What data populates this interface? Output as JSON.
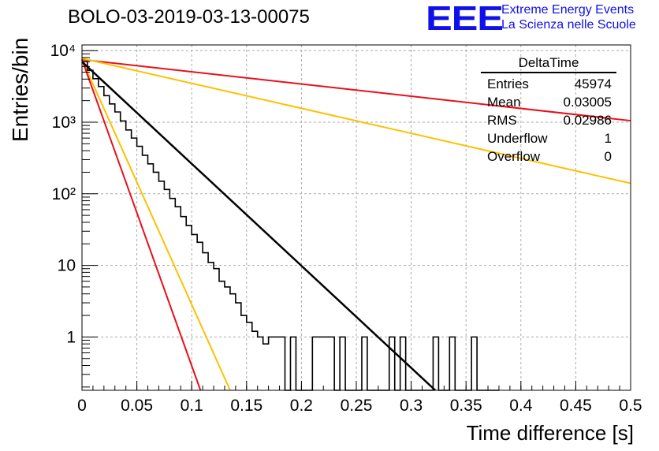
{
  "header": {
    "title": "BOLO-03-2019-03-13-00075",
    "logo": "EEE",
    "org_line1": "Extreme Energy Events",
    "org_line2": "La Scienza nelle Scuole"
  },
  "stats": {
    "name": "DeltaTime",
    "rows": [
      {
        "label": "Entries",
        "value": "45974"
      },
      {
        "label": "Mean",
        "value": "0.03005"
      },
      {
        "label": "RMS",
        "value": "0.02986"
      },
      {
        "label": "Underflow",
        "value": "1"
      },
      {
        "label": "Overflow",
        "value": "0"
      }
    ]
  },
  "colors": {
    "hist": "#000000",
    "fit": "#000000",
    "red": "#e8101a",
    "orange": "#ffc000",
    "grid": "#aaaaaa"
  },
  "chart_data": {
    "type": "line",
    "title": "BOLO-03-2019-03-13-00075",
    "xlabel": "Time difference [s]",
    "ylabel": "Entries/bin",
    "xlim": [
      0,
      0.5
    ],
    "ylim": [
      0.18,
      12000
    ],
    "yscale": "log",
    "grid": true,
    "x_ticks": [
      "0",
      "0.05",
      "0.1",
      "0.15",
      "0.2",
      "0.25",
      "0.3",
      "0.35",
      "0.4",
      "0.45",
      "0.5"
    ],
    "x_tick_values": [
      0,
      0.05,
      0.1,
      0.15,
      0.2,
      0.25,
      0.3,
      0.35,
      0.4,
      0.45,
      0.5
    ],
    "y_ticks": [
      "1",
      "10",
      "10²",
      "10³",
      "10⁴"
    ],
    "y_tick_values": [
      1,
      10,
      100,
      1000,
      10000
    ],
    "histogram": {
      "bin_width": 0.005,
      "start": 0,
      "counts": [
        7000,
        5300,
        4050,
        3150,
        2350,
        1800,
        1390,
        1040,
        780,
        600,
        460,
        345,
        262,
        200,
        150,
        115,
        86,
        66,
        48,
        36,
        27,
        21,
        15,
        11,
        9,
        6,
        5,
        4,
        3,
        2,
        1.6,
        1.2,
        1,
        0.8,
        1,
        1,
        1,
        0,
        1,
        0,
        0,
        0,
        1,
        1,
        1,
        1,
        0,
        1,
        0,
        0,
        0,
        1,
        0,
        0,
        0,
        0,
        1,
        0,
        1,
        0,
        0,
        0,
        0,
        0,
        1,
        0,
        0,
        1,
        0,
        0,
        0,
        1,
        0,
        0,
        0,
        0
      ]
    },
    "fit_line": {
      "x": [
        0,
        0.322
      ],
      "y": [
        7000,
        0.18
      ]
    },
    "envelope_lines": [
      {
        "color": "red",
        "x": [
          0,
          0.5
        ],
        "y": [
          7500,
          1050
        ]
      },
      {
        "color": "orange",
        "x": [
          0,
          0.5
        ],
        "y": [
          7800,
          140
        ]
      },
      {
        "color": "orange",
        "x": [
          0,
          0.135
        ],
        "y": [
          7500,
          0.18
        ]
      },
      {
        "color": "red",
        "x": [
          0,
          0.108
        ],
        "y": [
          7500,
          0.18
        ]
      }
    ]
  }
}
